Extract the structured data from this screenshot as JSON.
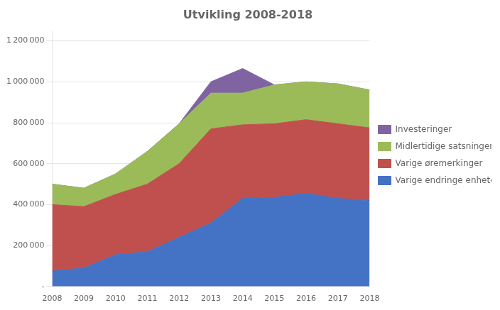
{
  "chart_data": {
    "type": "area",
    "title": "Utvikling 2008-2018",
    "x": [
      2008,
      2009,
      2010,
      2011,
      2012,
      2013,
      2014,
      2015,
      2016,
      2017,
      2018
    ],
    "series": [
      {
        "name": "Varige endringe enhetene",
        "color": "#4472C4",
        "values": [
          75000,
          90000,
          155000,
          170000,
          240000,
          310000,
          430000,
          435000,
          455000,
          430000,
          420000
        ]
      },
      {
        "name": "Varige øremerkinger",
        "color": "#C0504D",
        "values": [
          325000,
          300000,
          295000,
          330000,
          360000,
          460000,
          360000,
          360000,
          360000,
          365000,
          355000
        ]
      },
      {
        "name": "Midlertidige satsninger",
        "color": "#9BBB59",
        "values": [
          100000,
          90000,
          100000,
          160000,
          195000,
          175000,
          155000,
          190000,
          185000,
          195000,
          185000
        ]
      },
      {
        "name": "Investeringer",
        "color": "#8064A2",
        "values": [
          0,
          0,
          0,
          0,
          0,
          55000,
          120000,
          0,
          0,
          0,
          0
        ]
      }
    ],
    "xlim": [
      2008,
      2018
    ],
    "xticks": [
      2008,
      2009,
      2010,
      2011,
      2012,
      2013,
      2014,
      2015,
      2016,
      2017,
      2018
    ],
    "ylim": [
      0,
      1250000
    ],
    "yticks": [
      {
        "value": 0,
        "label": "-"
      },
      {
        "value": 200000,
        "label": "200 000"
      },
      {
        "value": 400000,
        "label": "400 000"
      },
      {
        "value": 600000,
        "label": "600 000"
      },
      {
        "value": 800000,
        "label": "800 000"
      },
      {
        "value": 1000000,
        "label": "1 000 000"
      },
      {
        "value": 1200000,
        "label": "1 200 000"
      }
    ],
    "stacked": true,
    "grid": true,
    "legend": "right"
  }
}
